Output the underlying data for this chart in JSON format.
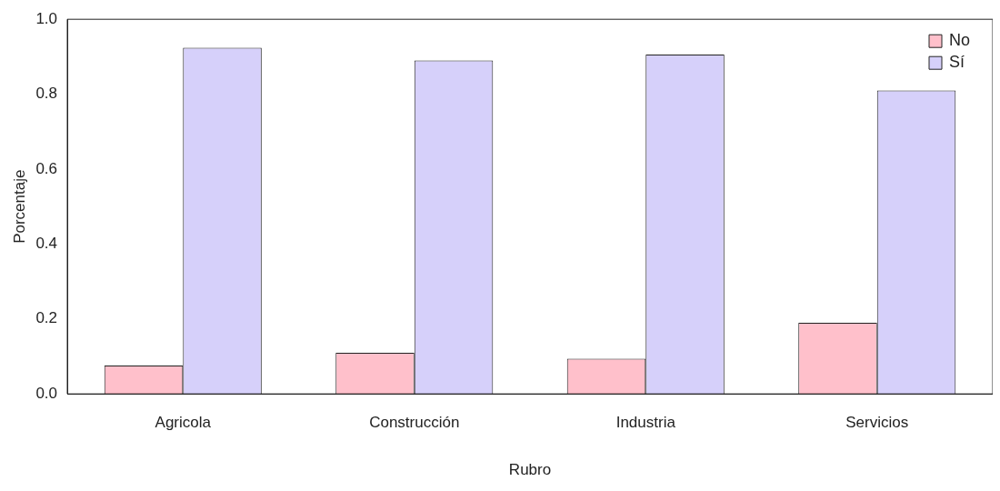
{
  "chart_data": {
    "type": "bar",
    "xlabel": "Rubro",
    "ylabel": "Porcentaje",
    "categories": [
      "Agricola",
      "Construcción",
      "Industria",
      "Servicios"
    ],
    "series": [
      {
        "name": "No",
        "color": "#ffc0cb",
        "values": [
          0.076,
          0.11,
          0.094,
          0.19
        ]
      },
      {
        "name": "Sí",
        "color": "#d6d0fa",
        "values": [
          0.924,
          0.89,
          0.906,
          0.81
        ]
      }
    ],
    "ylim": [
      0,
      1
    ],
    "yticks": [
      {
        "value": 0,
        "label": "0.0"
      },
      {
        "value": 0.2,
        "label": "0.2"
      },
      {
        "value": 0.4,
        "label": "0.4"
      },
      {
        "value": 0.6,
        "label": "0.6"
      },
      {
        "value": 0.8,
        "label": "0.8"
      },
      {
        "value": 1,
        "label": "1.0"
      }
    ],
    "grid": false,
    "legend": "top right"
  }
}
